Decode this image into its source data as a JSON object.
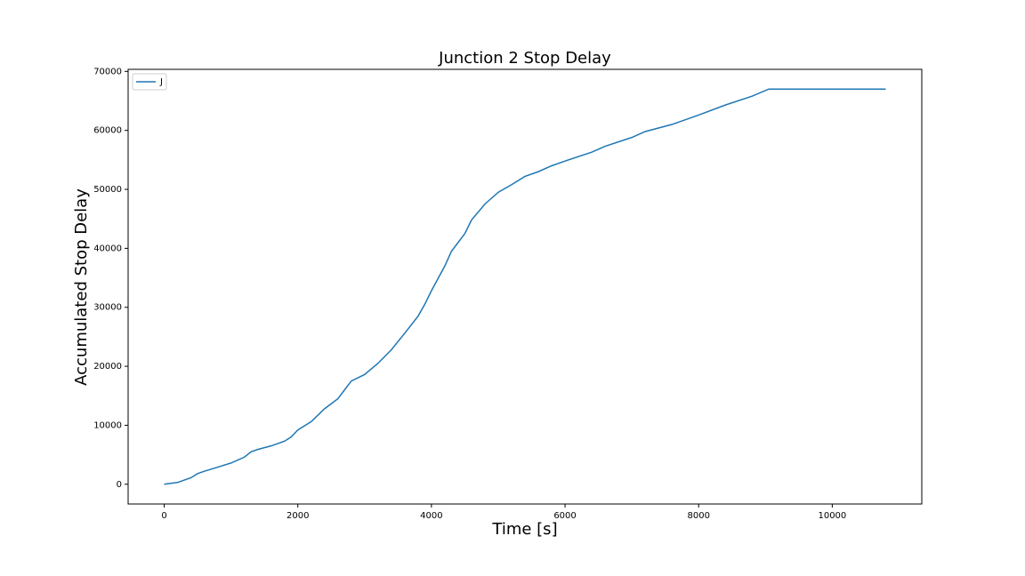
{
  "chart_data": {
    "type": "line",
    "title": "Junction 2 Stop Delay",
    "xlabel": "Time [s]",
    "ylabel": "Accumulated Stop Delay",
    "x": [
      0,
      200,
      400,
      500,
      600,
      800,
      1000,
      1200,
      1300,
      1400,
      1600,
      1800,
      1900,
      2000,
      2200,
      2400,
      2600,
      2700,
      2800,
      3000,
      3200,
      3400,
      3600,
      3800,
      3900,
      4000,
      4200,
      4300,
      4400,
      4500,
      4600,
      4800,
      5000,
      5200,
      5400,
      5600,
      5800,
      6000,
      6400,
      6600,
      7000,
      7200,
      7600,
      8000,
      8400,
      8800,
      9050,
      10800
    ],
    "series": [
      {
        "name": "J",
        "color": "#1f77b4",
        "values": [
          0,
          300,
          1100,
          1800,
          2200,
          2900,
          3600,
          4600,
          5500,
          5900,
          6500,
          7300,
          8000,
          9200,
          10600,
          12800,
          14500,
          16000,
          17500,
          18600,
          20500,
          22800,
          25600,
          28500,
          30500,
          32800,
          37000,
          39500,
          41000,
          42500,
          44800,
          47500,
          49500,
          50800,
          52200,
          53000,
          54000,
          54800,
          56300,
          57300,
          58800,
          59800,
          61000,
          62600,
          64300,
          65800,
          67000,
          67000
        ]
      }
    ],
    "xlim": [
      -540,
      11340
    ],
    "xticks": [
      0,
      2000,
      4000,
      6000,
      8000,
      10000
    ],
    "ylim": [
      -3350,
      70350
    ],
    "yticks": [
      0,
      10000,
      20000,
      30000,
      40000,
      50000,
      60000,
      70000
    ],
    "legend": "upper left"
  }
}
